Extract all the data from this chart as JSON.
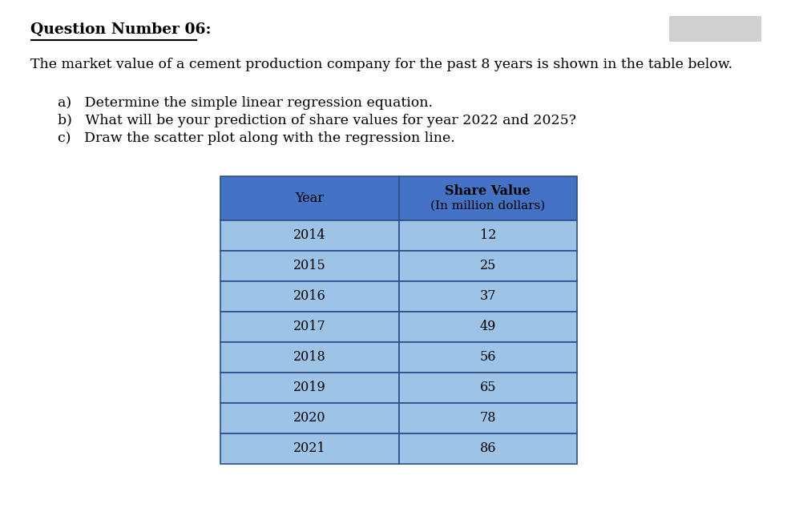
{
  "title": "Question Number 06:",
  "intro_text": "The market value of a cement production company for the past 8 years is shown in the table below.",
  "items": [
    "a)   Determine the simple linear regression equation.",
    "b)   What will be your prediction of share values for year 2022 and 2025?",
    "c)   Draw the scatter plot along with the regression line."
  ],
  "col1_header": "Year",
  "col2_header_line1": "Share Value",
  "col2_header_line2": "(In million dollars)",
  "years": [
    2014,
    2015,
    2016,
    2017,
    2018,
    2019,
    2020,
    2021
  ],
  "values": [
    12,
    25,
    37,
    49,
    56,
    65,
    78,
    86
  ],
  "header_bg_color": "#4472C4",
  "row_bg_color": "#9DC3E6",
  "border_color": "#2E4D8A",
  "header_text_color": "#000000",
  "row_text_color": "#000000",
  "bg_color": "#ffffff",
  "gray_box_color": "#D0D0D0",
  "title_fontsize": 13.5,
  "body_fontsize": 12.5,
  "table_fontsize": 11.5
}
